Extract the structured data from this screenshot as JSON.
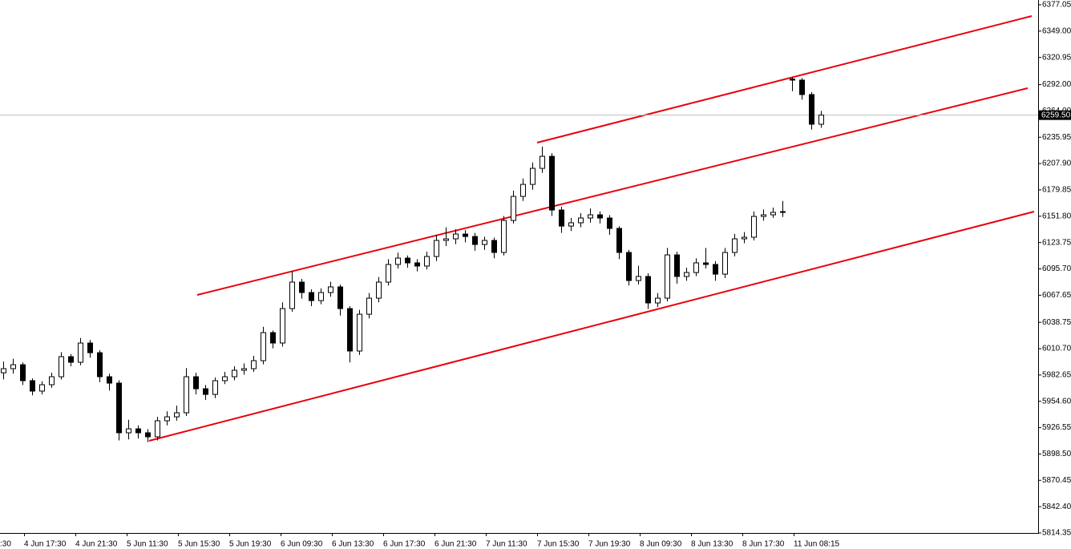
{
  "chart_data": {
    "type": "candlestick",
    "ylim": [
      5814.35,
      6382.15
    ],
    "yticks": [
      {
        "value": 6377.05,
        "label": "6377.05"
      },
      {
        "value": 6349.0,
        "label": "6349.00"
      },
      {
        "value": 6320.95,
        "label": "6320.95"
      },
      {
        "value": 6292.0,
        "label": "6292.00"
      },
      {
        "value": 6264.0,
        "label": "6264.00"
      },
      {
        "value": 6235.95,
        "label": "6235.95"
      },
      {
        "value": 6207.9,
        "label": "6207.90"
      },
      {
        "value": 6179.85,
        "label": "6179.85"
      },
      {
        "value": 6151.8,
        "label": "6151.80"
      },
      {
        "value": 6123.75,
        "label": "6123.75"
      },
      {
        "value": 6095.7,
        "label": "6095.70"
      },
      {
        "value": 6067.65,
        "label": "6067.65"
      },
      {
        "value": 6038.75,
        "label": "6038.75"
      },
      {
        "value": 6010.7,
        "label": "6010.70"
      },
      {
        "value": 5982.65,
        "label": "5982.65"
      },
      {
        "value": 5954.6,
        "label": "5954.60"
      },
      {
        "value": 5926.55,
        "label": "5926.55"
      },
      {
        "value": 5898.5,
        "label": "5898.50"
      },
      {
        "value": 5870.45,
        "label": "5870.45"
      },
      {
        "value": 5842.4,
        "label": "5842.40"
      },
      {
        "value": 5814.35,
        "label": "5814.35"
      }
    ],
    "xlabels": [
      ":30",
      "4 Jun 17:30",
      "4 Jun 21:30",
      "5 Jun 11:30",
      "5 Jun 15:30",
      "5 Jun 19:30",
      "6 Jun 09:30",
      "6 Jun 13:30",
      "6 Jun 17:30",
      "6 Jun 21:30",
      "7 Jun 11:30",
      "7 Jun 15:30",
      "7 Jun 19:30",
      "8 Jun 09:30",
      "8 Jun 13:30",
      "8 Jun 17:30",
      "11 Jun 08:15"
    ],
    "last_price": {
      "value": 6259.5,
      "label": "6259.50"
    },
    "bull_color": "#ffffff",
    "bear_color": "#000000",
    "trend_color": "#e8000b",
    "ohlc": [
      [
        5985.0,
        5997,
        5978,
        5989.4
      ],
      [
        5989.4,
        6000,
        5984,
        5993.6
      ],
      [
        5993.6,
        5996,
        5972,
        5976.6
      ],
      [
        5976.6,
        5979,
        5961,
        5965.5
      ],
      [
        5965.5,
        5976,
        5962,
        5972.3
      ],
      [
        5972.3,
        5985,
        5969,
        5980.8
      ],
      [
        5980.8,
        6007,
        5978,
        6002.2
      ],
      [
        6002.2,
        6005,
        5992,
        5996.2
      ],
      [
        5996.2,
        6022,
        5993,
        6016.7
      ],
      [
        6016.7,
        6020,
        6001,
        6006.4
      ],
      [
        6006.4,
        6009,
        5975,
        5980.8
      ],
      [
        5980.8,
        5984,
        5966,
        5974.0
      ],
      [
        5974.0,
        5977,
        5913,
        5921.1
      ],
      [
        5921.1,
        5935,
        5914,
        5925.3
      ],
      [
        5925.3,
        5929,
        5915,
        5921.1
      ],
      [
        5921.1,
        5925,
        5911,
        5916.8
      ],
      [
        5916.8,
        5938,
        5913,
        5933.9
      ],
      [
        5933.9,
        5944,
        5929,
        5938.1
      ],
      [
        5938.1,
        5950,
        5934,
        5942.4
      ],
      [
        5942.4,
        5990,
        5939,
        5980.8
      ],
      [
        5980.8,
        5985,
        5962,
        5968.0
      ],
      [
        5968.0,
        5972,
        5956,
        5962.0
      ],
      [
        5962.0,
        5980,
        5958,
        5976.6
      ],
      [
        5976.6,
        5986,
        5973,
        5980.8
      ],
      [
        5980.8,
        5992,
        5977,
        5987.7
      ],
      [
        5987.7,
        5995,
        5983,
        5989.4
      ],
      [
        5989.4,
        6003,
        5986,
        5997.9
      ],
      [
        5997.9,
        6034,
        5994,
        6027.8
      ],
      [
        6027.8,
        6030,
        6011,
        6016.7
      ],
      [
        6016.7,
        6060,
        6013,
        6053.4
      ],
      [
        6053.4,
        6093,
        6050,
        6081.6
      ],
      [
        6081.6,
        6085,
        6064,
        6070.5
      ],
      [
        6070.5,
        6074,
        6056,
        6061.9
      ],
      [
        6061.9,
        6075,
        6058,
        6070.5
      ],
      [
        6070.5,
        6082,
        6066,
        6076.5
      ],
      [
        6076.5,
        6079,
        6046,
        6053.4
      ],
      [
        6053.4,
        6056,
        5996,
        6008.2
      ],
      [
        6008.2,
        6052,
        6004,
        6047.4
      ],
      [
        6047.4,
        6070,
        6043,
        6064.5
      ],
      [
        6064.5,
        6087,
        6060,
        6081.6
      ],
      [
        6081.6,
        6106,
        6078,
        6100.4
      ],
      [
        6100.4,
        6113,
        6096,
        6107.2
      ],
      [
        6107.2,
        6110,
        6097,
        6102.1
      ],
      [
        6102.1,
        6106,
        6093,
        6098.7
      ],
      [
        6098.7,
        6114,
        6095,
        6108.9
      ],
      [
        6108.9,
        6132,
        6104,
        6126.0
      ],
      [
        6126.0,
        6140,
        6120,
        6127.7
      ],
      [
        6127.7,
        6138,
        6122,
        6132.8
      ],
      [
        6132.8,
        6137,
        6124,
        6130.2
      ],
      [
        6130.2,
        6134,
        6115,
        6121.7
      ],
      [
        6121.7,
        6130,
        6116,
        6126.0
      ],
      [
        6126.0,
        6129,
        6107,
        6113.2
      ],
      [
        6113.2,
        6152,
        6110,
        6147.3
      ],
      [
        6147.3,
        6179,
        6144,
        6172.9
      ],
      [
        6172.9,
        6192,
        6168,
        6185.7
      ],
      [
        6185.7,
        6209,
        6180,
        6202.8
      ],
      [
        6202.8,
        6226,
        6198,
        6215.6
      ],
      [
        6215.6,
        6219,
        6152,
        6158.4
      ],
      [
        6158.4,
        6162,
        6134,
        6141.3
      ],
      [
        6141.3,
        6150,
        6136,
        6144.8
      ],
      [
        6144.8,
        6155,
        6140,
        6149.9
      ],
      [
        6149.9,
        6160,
        6145,
        6153.3
      ],
      [
        6153.3,
        6157,
        6144,
        6149.9
      ],
      [
        6149.9,
        6153,
        6132,
        6138.8
      ],
      [
        6138.8,
        6141,
        6106,
        6113.2
      ],
      [
        6113.2,
        6116,
        6078,
        6083.3
      ],
      [
        6083.3,
        6099,
        6079,
        6087.6
      ],
      [
        6087.6,
        6091,
        6053,
        6059.4
      ],
      [
        6059.4,
        6070,
        6055,
        6064.5
      ],
      [
        6064.5,
        6118,
        6061,
        6110.6
      ],
      [
        6110.6,
        6114,
        6080,
        6087.6
      ],
      [
        6087.6,
        6097,
        6083,
        6091.8
      ],
      [
        6091.8,
        6107,
        6088,
        6102.1
      ],
      [
        6102.1,
        6118,
        6096,
        6100.4
      ],
      [
        6100.4,
        6104,
        6083,
        6090.1
      ],
      [
        6090.1,
        6118,
        6086,
        6113.2
      ],
      [
        6113.2,
        6133,
        6109,
        6127.7
      ],
      [
        6127.7,
        6135,
        6123,
        6129.4
      ],
      [
        6129.4,
        6157,
        6126,
        6151.6
      ],
      [
        6151.6,
        6159,
        6147,
        6153.3
      ],
      [
        6153.3,
        6161,
        6150,
        6155.9
      ],
      [
        6155.9,
        6168,
        6151,
        6156.7
      ],
      [
        6298.0,
        6300,
        6285,
        6296.8
      ],
      [
        6296.8,
        6299,
        6276,
        6281.4
      ],
      [
        6281.4,
        6284,
        6244,
        6249.8
      ],
      [
        6249.8,
        6264,
        6246,
        6259.5
      ]
    ]
  }
}
